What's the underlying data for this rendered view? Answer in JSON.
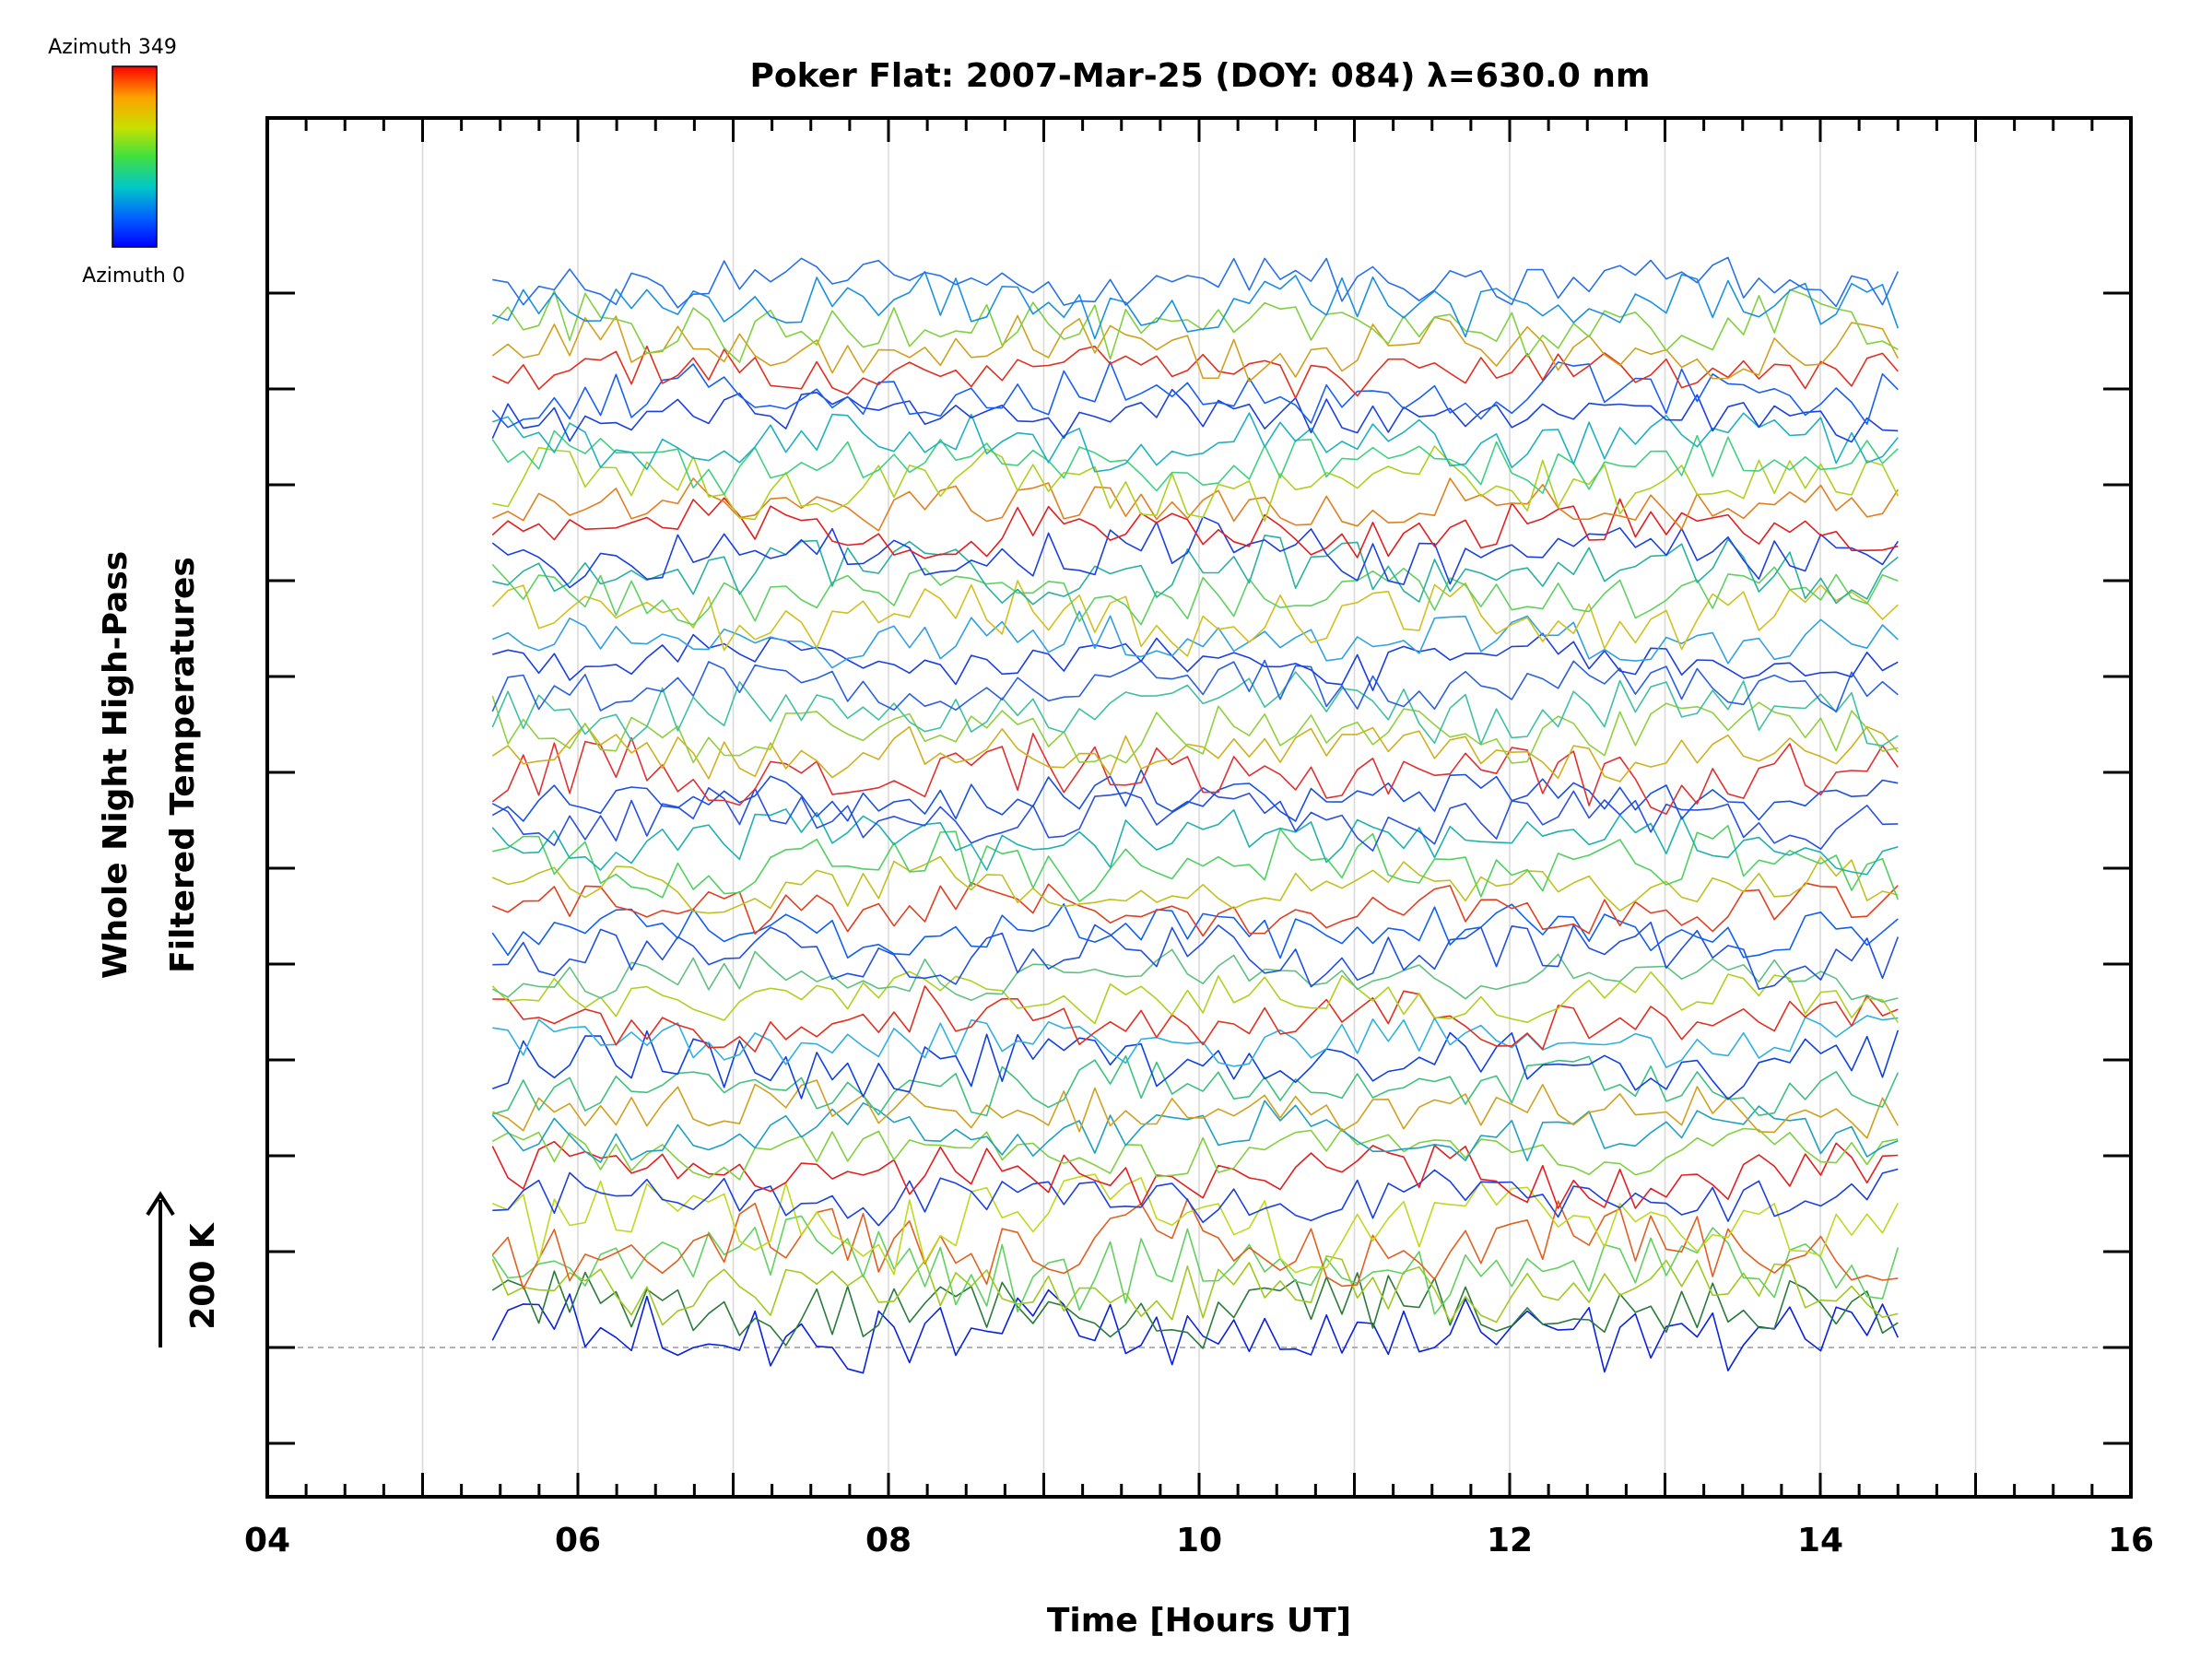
{
  "chart_data": {
    "type": "line",
    "title": "Poker Flat: 2007-Mar-25 (DOY: 084) λ=630.0 nm",
    "xlabel": "Time [Hours UT]",
    "ylabel_line1": "Whole Night High-Pass",
    "ylabel_line2": "Filtered Temperatures",
    "xlim": [
      4,
      16
    ],
    "x_ticks": [
      4,
      6,
      8,
      10,
      12,
      14,
      16
    ],
    "x_tick_labels": [
      "04",
      "06",
      "08",
      "10",
      "12",
      "14",
      "16"
    ],
    "grid_x": [
      5,
      6,
      7,
      8,
      9,
      10,
      11,
      12,
      13,
      14,
      15
    ],
    "y_major_ticks": 13,
    "scale_bar_label": "200 K",
    "colorbar": {
      "top_label": "Azimuth  349",
      "bottom_label": "Azimuth  0",
      "colors": [
        "#ff0000",
        "#ffa000",
        "#c8e000",
        "#40e040",
        "#00c8c8",
        "#0060ff",
        "#0000ff"
      ]
    },
    "time_range": [
      5.45,
      14.5
    ],
    "series_count": 48,
    "series_colors": [
      "#0a22dd",
      "#2a7a3a",
      "#a0c820",
      "#60d060",
      "#e06020",
      "#c0d820",
      "#1a40e0",
      "#e02020",
      "#80d040",
      "#20a0c0",
      "#d0a020",
      "#40c080",
      "#1040e0",
      "#30b0e0",
      "#e03020",
      "#b0d020",
      "#60c080",
      "#2050e0",
      "#1060f0",
      "#e04020",
      "#c0c020",
      "#50d060",
      "#20b0b0",
      "#2a50e0",
      "#1a50e0",
      "#e03030",
      "#d0b020",
      "#90d040",
      "#40c0a0",
      "#2a60e0",
      "#1a3ee0",
      "#30a0e0",
      "#d0c020",
      "#60d060",
      "#2ab0a0",
      "#1a40e0",
      "#e02020",
      "#e08020",
      "#b0d020",
      "#40d080",
      "#20b0c0",
      "#1a40e0",
      "#1a60f0",
      "#e03020",
      "#d0a020",
      "#80d040",
      "#1a90e0",
      "#2a70e8"
    ],
    "series_offsets_K": [
      0,
      60,
      120,
      180,
      240,
      300,
      360,
      420,
      480,
      540,
      600,
      660,
      720,
      780,
      840,
      900,
      960,
      1020,
      1080,
      1140,
      1200,
      1260,
      1320,
      1380,
      1440,
      1500,
      1560,
      1620,
      1680,
      1740,
      1800,
      1860,
      1920,
      1980,
      2040,
      2100,
      2160,
      2220,
      2280,
      2340,
      2400,
      2460,
      2520,
      2580,
      2640,
      2700,
      2760,
      2820
    ]
  }
}
